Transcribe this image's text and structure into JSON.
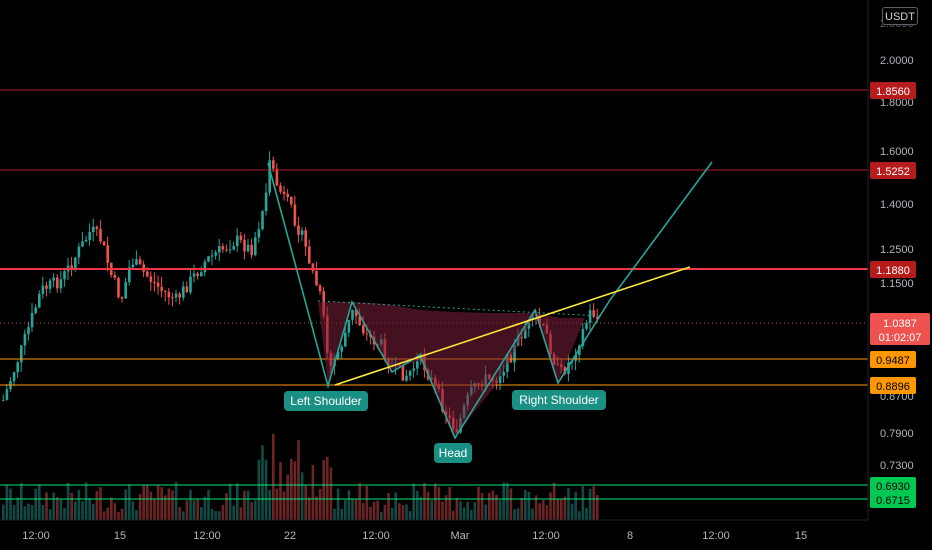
{
  "currency": "USDT",
  "colors": {
    "up": "#26a69a",
    "down": "#ef5350",
    "red_level": "#f23645",
    "orange_level": "#ff9800",
    "green_level": "#00e676",
    "neckline": "#ffeb3b",
    "pattern": "#26a69a",
    "pattern_fill": "#7b1f3a"
  },
  "chart_data": {
    "type": "candlestick",
    "y_scale": "log",
    "ylim": [
      0.66,
      2.2
    ],
    "y_ticks": [
      "2.0000",
      "1.8000",
      "1.6000",
      "1.4000",
      "1.2500",
      "1.1500",
      "0.8700",
      "0.7900",
      "0.7300"
    ],
    "x_ticks": [
      "12:00",
      "15",
      "12:00",
      "22",
      "12:00",
      "Mar",
      "12:00",
      "8",
      "12:00",
      "15"
    ],
    "grid": false,
    "current_price": "1.0387",
    "countdown": "01:02:07",
    "horizontal_levels": [
      {
        "label": "1.8560",
        "kind": "red"
      },
      {
        "label": "1.5252",
        "kind": "red"
      },
      {
        "label": "1.1880",
        "kind": "red"
      },
      {
        "label": "0.9487",
        "kind": "orange"
      },
      {
        "label": "0.8896",
        "kind": "orange"
      },
      {
        "label": "0.6930",
        "kind": "green"
      },
      {
        "label": "0.6715",
        "kind": "green"
      }
    ],
    "annotations": [
      {
        "label": "Left Shoulder"
      },
      {
        "label": "Head"
      },
      {
        "label": "Right Shoulder"
      }
    ]
  }
}
